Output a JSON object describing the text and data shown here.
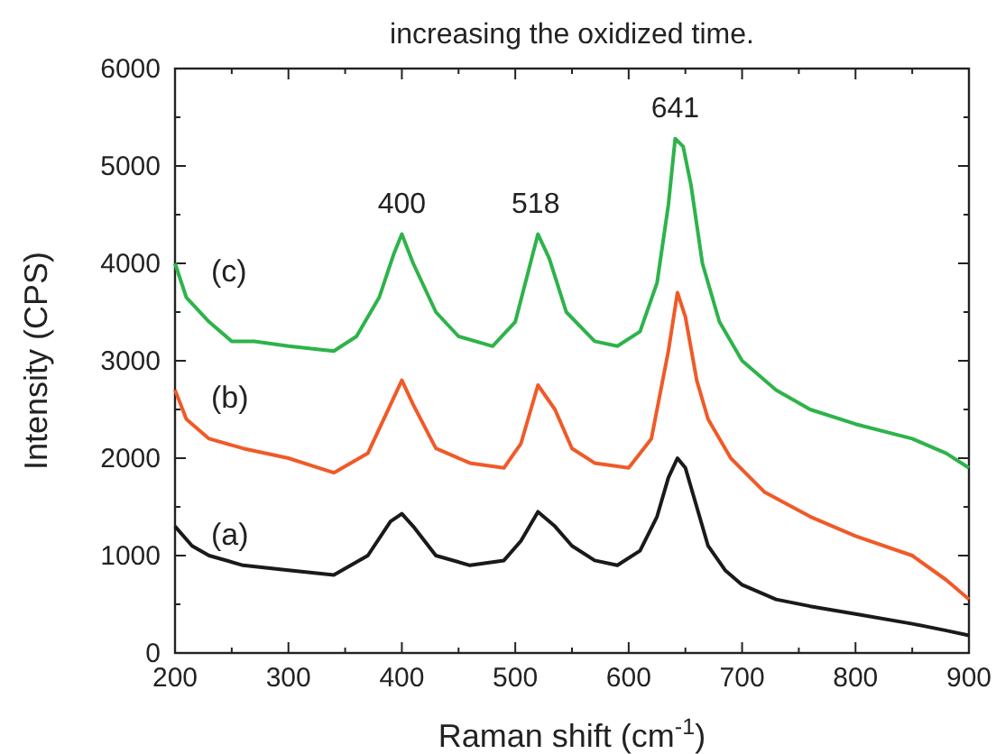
{
  "chart_data": {
    "type": "line",
    "title": "increasing the oxidized time.",
    "xlabel": "Raman shift (cm$^{-1}$)",
    "ylabel": "Intensity (CPS)",
    "xlim": [
      200,
      900
    ],
    "ylim": [
      0,
      6000
    ],
    "xticks": [
      200,
      {
        "value": 250,
        "label": null
      },
      300,
      {
        "value": 350,
        "label": null
      },
      400,
      {
        "value": 450,
        "label": null
      },
      500,
      {
        "value": 550,
        "label": null
      },
      600,
      {
        "value": 650,
        "label": null
      },
      700,
      {
        "value": 750,
        "label": null
      },
      800,
      {
        "value": 850,
        "label": null
      },
      900
    ],
    "yticks": [
      0,
      {
        "value": 500,
        "label": null
      },
      1000,
      {
        "value": 1500,
        "label": null
      },
      2000,
      {
        "value": 2500,
        "label": null
      },
      3000,
      {
        "value": 3500,
        "label": null
      },
      4000,
      {
        "value": 4500,
        "label": null
      },
      5000,
      {
        "value": 5500,
        "label": null
      },
      6000
    ],
    "grid": false,
    "marker": "none",
    "line_style": "solid",
    "annotations": [
      {
        "text": "400",
        "x": 400,
        "y": 4300
      },
      {
        "text": "518",
        "x": 518,
        "y": 4300
      },
      {
        "text": "641",
        "x": 641,
        "y": 5280
      }
    ],
    "series": [
      {
        "name": "(a)",
        "color": "#1a1a1a",
        "x": [
          200,
          215,
          230,
          260,
          300,
          340,
          370,
          390,
          400,
          410,
          430,
          460,
          490,
          505,
          520,
          535,
          550,
          570,
          590,
          610,
          625,
          635,
          643,
          650,
          660,
          670,
          685,
          700,
          730,
          760,
          800,
          850,
          880,
          900
        ],
        "values": [
          1300,
          1100,
          1000,
          900,
          850,
          800,
          1000,
          1350,
          1430,
          1300,
          1000,
          900,
          950,
          1150,
          1450,
          1300,
          1100,
          950,
          900,
          1050,
          1400,
          1800,
          2000,
          1900,
          1500,
          1100,
          850,
          700,
          550,
          480,
          400,
          300,
          230,
          180
        ]
      },
      {
        "name": "(b)",
        "color": "#f05a28",
        "x": [
          200,
          210,
          230,
          260,
          300,
          340,
          370,
          390,
          400,
          410,
          430,
          460,
          490,
          505,
          520,
          535,
          550,
          570,
          600,
          620,
          635,
          643,
          650,
          660,
          670,
          690,
          720,
          760,
          800,
          850,
          880,
          900
        ],
        "values": [
          2700,
          2400,
          2200,
          2100,
          2000,
          1850,
          2050,
          2550,
          2800,
          2550,
          2100,
          1950,
          1900,
          2150,
          2750,
          2500,
          2100,
          1950,
          1900,
          2200,
          3100,
          3700,
          3450,
          2800,
          2400,
          2000,
          1650,
          1400,
          1200,
          1000,
          750,
          550
        ]
      },
      {
        "name": "(c)",
        "color": "#2db34a",
        "x": [
          200,
          210,
          230,
          250,
          270,
          300,
          340,
          360,
          380,
          393,
          400,
          410,
          430,
          450,
          480,
          500,
          510,
          520,
          530,
          545,
          570,
          590,
          610,
          625,
          635,
          641,
          648,
          655,
          665,
          680,
          700,
          730,
          760,
          800,
          850,
          880,
          900
        ],
        "values": [
          4000,
          3650,
          3400,
          3200,
          3200,
          3150,
          3100,
          3250,
          3650,
          4100,
          4300,
          4000,
          3500,
          3250,
          3150,
          3400,
          3850,
          4300,
          4050,
          3500,
          3200,
          3150,
          3300,
          3800,
          4600,
          5280,
          5200,
          4800,
          4000,
          3400,
          3000,
          2700,
          2500,
          2350,
          2200,
          2050,
          1900
        ]
      }
    ]
  }
}
